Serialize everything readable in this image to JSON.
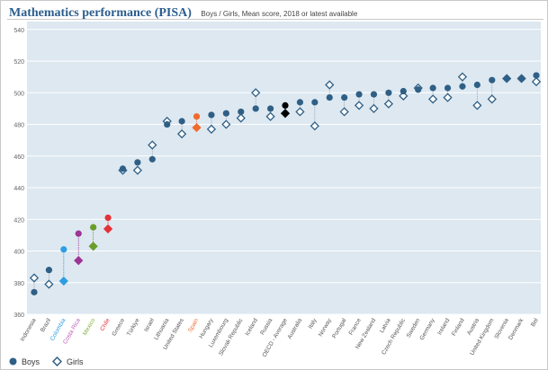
{
  "header": {
    "title": "Mathematics performance (PISA)",
    "subtitle": "Boys / Girls, Mean score, 2018 or latest available"
  },
  "legend": {
    "boys": "Boys",
    "girls": "Girls"
  },
  "colors": {
    "plot_bg": "#dde8f1",
    "grid": "#ffffff",
    "boys_default": "#2f5f85",
    "girls_default": "#2f5f85",
    "connector": "#9aa7b3",
    "tick_label": "#666666",
    "x_label_default": "#555555"
  },
  "chart_data": {
    "type": "scatter",
    "title": "Mathematics performance (PISA)",
    "subtitle": "Boys / Girls, Mean score, 2018 or latest available",
    "ylim": [
      360,
      545
    ],
    "yticks": [
      360,
      380,
      400,
      420,
      440,
      460,
      480,
      500,
      520,
      540
    ],
    "grid": true,
    "legend_position": "bottom-left",
    "categories": [
      "Indonesia",
      "Brazil",
      "Colombia",
      "Costa Rica",
      "Mexico",
      "Chile",
      "Greece",
      "Türkiye",
      "Israel",
      "Lithuania",
      "United States",
      "Spain",
      "Hungary",
      "Luxembourg",
      "Slovak Republic",
      "Iceland",
      "Russia",
      "OECD - Average",
      "Australia",
      "Italy",
      "Norway",
      "Portugal",
      "France",
      "New Zealand",
      "Latvia",
      "Czech Republic",
      "Sweden",
      "Germany",
      "Ireland",
      "Finland",
      "Austria",
      "United Kingdom",
      "Slovenia",
      "Denmark",
      "Bel"
    ],
    "series": [
      {
        "name": "Boys",
        "marker": "circle",
        "values": [
          374,
          388,
          401,
          411,
          415,
          421,
          452,
          456,
          458,
          480,
          482,
          485,
          486,
          487,
          488,
          490,
          490,
          492,
          494,
          494,
          497,
          497,
          499,
          499,
          500,
          501,
          502,
          503,
          503,
          504,
          505,
          508,
          509,
          509,
          511
        ]
      },
      {
        "name": "Girls",
        "marker": "diamond",
        "values": [
          383,
          379,
          381,
          394,
          403,
          414,
          451,
          451,
          467,
          482,
          474,
          478,
          477,
          480,
          484,
          500,
          485,
          487,
          488,
          479,
          505,
          488,
          492,
          490,
          493,
          498,
          503,
          496,
          497,
          510,
          492,
          496,
          509,
          509,
          507
        ]
      }
    ],
    "highlights": {
      "Colombia": "#2e9ee2",
      "Costa Rica": "#9c3593",
      "Mexico": "#6a9d2a",
      "Chile": "#e53238",
      "Spain": "#f06b2e",
      "OECD - Average": "#000000"
    },
    "highlight_labels": {
      "Colombia": "#2e9ee2",
      "Costa Rica": "#c25bb8",
      "Mexico": "#7fae3e",
      "Chile": "#e53238",
      "Spain": "#f06b2e"
    },
    "marker_fill": {
      "Girls": {
        "default": "#ffffff",
        "Colombia": "#2e9ee2",
        "Costa Rica": "#9c3593",
        "Mexico": "#6a9d2a",
        "Chile": "#e53238",
        "Spain": "#f06b2e",
        "OECD - Average": "#000000"
      }
    }
  }
}
